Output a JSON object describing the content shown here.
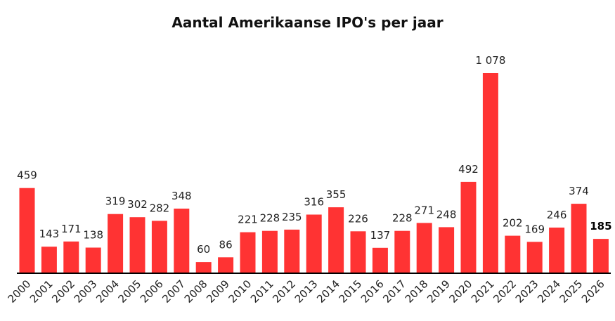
{
  "chart_data": {
    "type": "bar",
    "title": "Aantal Amerikaanse IPO's per jaar",
    "xlabel": "",
    "ylabel": "",
    "ylim": [
      0,
      1078
    ],
    "grid": false,
    "bar_color": "#ff3333",
    "axis_color": "#000000",
    "highlight_category": "2026",
    "categories": [
      "2000",
      "2001",
      "2002",
      "2003",
      "2004",
      "2005",
      "2006",
      "2007",
      "2008",
      "2009",
      "2010",
      "2011",
      "2012",
      "2013",
      "2014",
      "2015",
      "2016",
      "2017",
      "2018",
      "2019",
      "2020",
      "2021",
      "2022",
      "2023",
      "2024",
      "2025",
      "2026"
    ],
    "values": [
      459,
      143,
      171,
      138,
      319,
      302,
      282,
      348,
      60,
      86,
      221,
      228,
      235,
      316,
      355,
      226,
      137,
      228,
      271,
      248,
      492,
      1078,
      202,
      169,
      246,
      374,
      185
    ],
    "value_labels": [
      "459",
      "143",
      "171",
      "138",
      "319",
      "302",
      "282",
      "348",
      "60",
      "86",
      "221",
      "228",
      "235",
      "316",
      "355",
      "226",
      "137",
      "228",
      "271",
      "248",
      "492",
      "1 078",
      "202",
      "169",
      "246",
      "374",
      "185"
    ]
  }
}
